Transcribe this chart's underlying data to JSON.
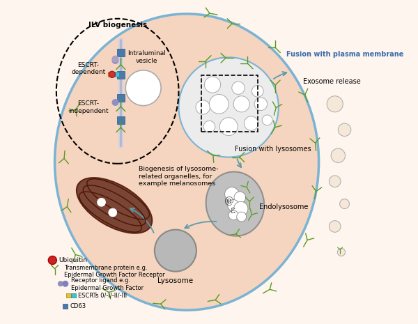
{
  "bg_color": "#fdf5ee",
  "cell_color": "#f5d5bf",
  "cell_border_color": "#7ab3d4",
  "green_protein": "#5a9a20",
  "blue_color": "#4a7aaa",
  "arrow_color": "#5a9aaa",
  "labels": {
    "ilv_biogenesis": "ILV biogenesis",
    "intraluminal": "Intraluminal\nvesicle",
    "escrt_dep": "ESCRT-\ndependent",
    "escrt_indep": "ESCRT-\nindependent",
    "fusion_plasma": "Fusion with plasma membrane",
    "fusion_lysosome": "Fusion with lysosomes",
    "exosome": "Exosome release",
    "biogenesis": "Biogenesis of lysosome-\nrelated organelles, for\nexample melanosomes",
    "endolysosome": "Endolysosome",
    "lysosome": "Lysosome",
    "ubiquitin": "Ubiquitin",
    "transmembrane": "Transmembrane protein e.g.\nEpidermal Growth Factor Receptor",
    "receptor_ligand": "Receptor ligand e.g.\nEpidermal Growth Factor",
    "escrts": "ESCRTs 0/-I/-II/-III",
    "cd63": "CD63"
  }
}
